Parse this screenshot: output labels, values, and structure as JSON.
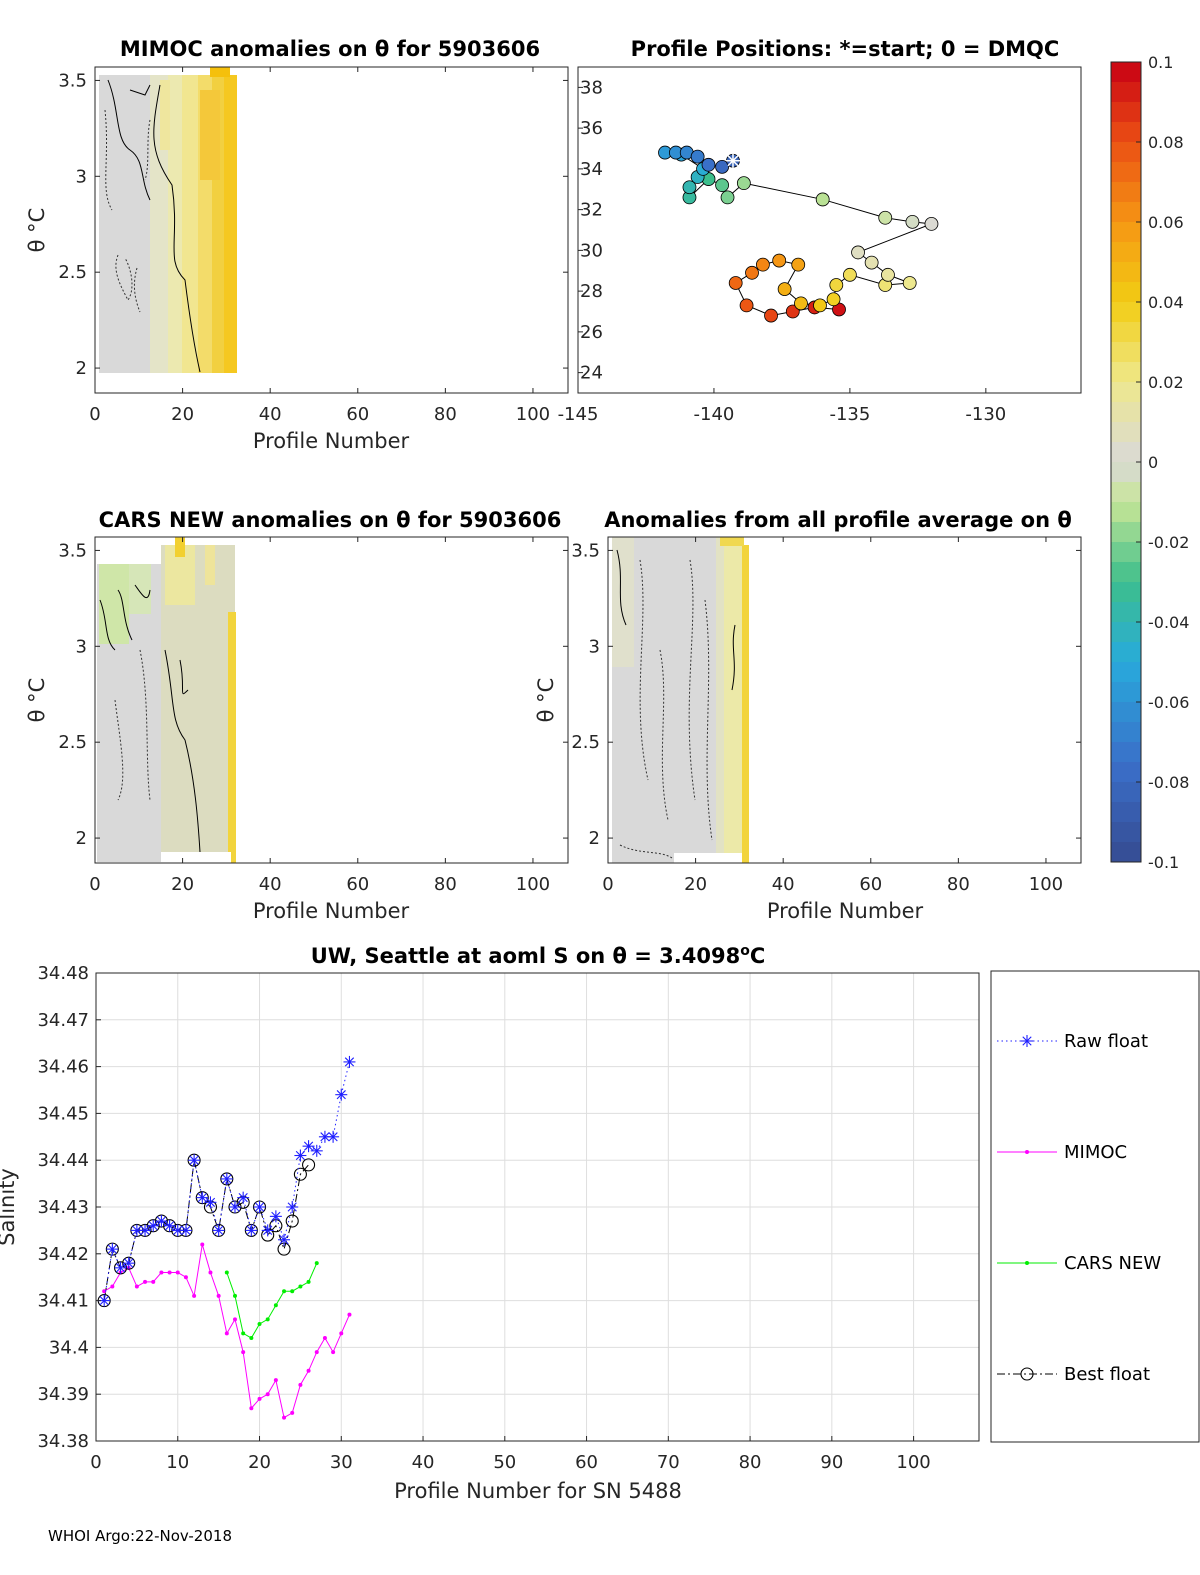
{
  "footer": "WHOI Argo:22-Nov-2018",
  "panels": {
    "mimoc": {
      "title": "MIMOC anomalies on θ  for 5903606",
      "xlabel": "Profile Number",
      "ylabel": "θ °C",
      "xticks": [
        "0",
        "20",
        "40",
        "60",
        "80",
        "100"
      ],
      "yticks": [
        "2",
        "2.5",
        "3",
        "3.5"
      ]
    },
    "positions": {
      "title": "Profile Positions: *=start; 0 = DMQC",
      "xticks": [
        "-145",
        "-140",
        "-135",
        "-130"
      ],
      "yticks": [
        "24",
        "26",
        "28",
        "30",
        "32",
        "34",
        "36",
        "38"
      ]
    },
    "cars": {
      "title": "CARS NEW anomalies on θ for 5903606",
      "xlabel": "Profile Number",
      "ylabel": "θ °C",
      "xticks": [
        "0",
        "20",
        "40",
        "60",
        "80",
        "100"
      ],
      "yticks": [
        "2",
        "2.5",
        "3",
        "3.5"
      ]
    },
    "allavg": {
      "title": "Anomalies from all profile average on θ",
      "xlabel": "Profile Number",
      "ylabel": "θ °C",
      "xticks": [
        "0",
        "20",
        "40",
        "60",
        "80",
        "100"
      ],
      "yticks": [
        "2",
        "2.5",
        "3",
        "3.5"
      ]
    }
  },
  "colorbar": {
    "ticks": [
      "0.1",
      "0.08",
      "0.06",
      "0.04",
      "0.02",
      "0",
      "-0.02",
      "-0.04",
      "-0.06",
      "-0.08",
      "-0.1"
    ]
  },
  "chart_data": [
    {
      "type": "heatmap",
      "id": "mimoc",
      "title": "MIMOC anomalies on θ  for 5903606",
      "xlabel": "Profile Number",
      "ylabel": "θ °C",
      "xlim": [
        0,
        108
      ],
      "ylim": [
        1.87,
        3.57
      ],
      "profiles_shown": [
        1,
        31
      ],
      "anomaly_range": [
        -0.005,
        0.05
      ],
      "colormap": "jet",
      "clim": [
        -0.1,
        0.1
      ]
    },
    {
      "type": "scatter",
      "id": "positions",
      "title": "Profile Positions: *=start; 0 = DMQC",
      "xlim": [
        -145,
        -126.5
      ],
      "ylim": [
        23,
        39
      ],
      "points": [
        {
          "lon": -139.3,
          "lat": 34.4,
          "start": true
        },
        {
          "lon": -139.7,
          "lat": 34.1
        },
        {
          "lon": -140.2,
          "lat": 34.2
        },
        {
          "lon": -140.6,
          "lat": 34.6
        },
        {
          "lon": -141.0,
          "lat": 34.8
        },
        {
          "lon": -141.4,
          "lat": 34.8
        },
        {
          "lon": -141.8,
          "lat": 34.8
        },
        {
          "lon": -141.2,
          "lat": 34.7
        },
        {
          "lon": -140.4,
          "lat": 34.0
        },
        {
          "lon": -140.6,
          "lat": 33.6
        },
        {
          "lon": -140.9,
          "lat": 33.1
        },
        {
          "lon": -140.9,
          "lat": 32.6
        },
        {
          "lon": -140.2,
          "lat": 33.5
        },
        {
          "lon": -139.7,
          "lat": 33.2
        },
        {
          "lon": -139.5,
          "lat": 32.6
        },
        {
          "lon": -138.9,
          "lat": 33.3
        },
        {
          "lon": -136.0,
          "lat": 32.5
        },
        {
          "lon": -133.7,
          "lat": 31.6
        },
        {
          "lon": -132.7,
          "lat": 31.4
        },
        {
          "lon": -132.0,
          "lat": 31.3
        },
        {
          "lon": -134.7,
          "lat": 29.9
        },
        {
          "lon": -134.2,
          "lat": 29.4
        },
        {
          "lon": -133.6,
          "lat": 28.8
        },
        {
          "lon": -132.8,
          "lat": 28.4
        },
        {
          "lon": -133.7,
          "lat": 28.3
        },
        {
          "lon": -135.0,
          "lat": 28.8
        },
        {
          "lon": -135.5,
          "lat": 28.3
        },
        {
          "lon": -135.6,
          "lat": 27.6
        },
        {
          "lon": -136.1,
          "lat": 27.3
        },
        {
          "lon": -136.8,
          "lat": 27.4
        },
        {
          "lon": -137.4,
          "lat": 28.1
        },
        {
          "lon": -136.9,
          "lat": 29.3
        },
        {
          "lon": -137.6,
          "lat": 29.5
        },
        {
          "lon": -138.2,
          "lat": 29.3
        },
        {
          "lon": -138.6,
          "lat": 28.9
        },
        {
          "lon": -139.2,
          "lat": 28.4
        },
        {
          "lon": -138.8,
          "lat": 27.3
        },
        {
          "lon": -137.9,
          "lat": 26.8
        },
        {
          "lon": -137.1,
          "lat": 27.0
        },
        {
          "lon": -136.3,
          "lat": 27.2
        },
        {
          "lon": -135.4,
          "lat": 27.1
        }
      ]
    },
    {
      "type": "heatmap",
      "id": "cars",
      "title": "CARS NEW anomalies on θ for 5903606",
      "xlabel": "Profile Number",
      "ylabel": "θ °C",
      "xlim": [
        0,
        108
      ],
      "ylim": [
        1.87,
        3.57
      ],
      "profiles_shown": [
        1,
        31
      ],
      "anomaly_range": [
        -0.02,
        0.04
      ],
      "colormap": "jet",
      "clim": [
        -0.1,
        0.1
      ]
    },
    {
      "type": "heatmap",
      "id": "allavg",
      "title": "Anomalies from all profile average on θ",
      "xlabel": "Profile Number",
      "ylabel": "θ °C",
      "xlim": [
        0,
        108
      ],
      "ylim": [
        1.87,
        3.57
      ],
      "profiles_shown": [
        1,
        32
      ],
      "anomaly_range": [
        -0.005,
        0.03
      ],
      "colormap": "jet",
      "clim": [
        -0.1,
        0.1
      ]
    },
    {
      "type": "line",
      "id": "salinity",
      "title": "UW, Seattle at aoml S on θ = 3.4098°C",
      "xlabel": "Profile Number for SN 5488",
      "ylabel": "Salinity",
      "xlim": [
        0,
        108
      ],
      "ylim": [
        34.38,
        34.48
      ],
      "xticks": [
        "0",
        "10",
        "20",
        "30",
        "40",
        "50",
        "60",
        "70",
        "80",
        "90",
        "100"
      ],
      "yticks": [
        "34.38",
        "34.39",
        "34.4",
        "34.41",
        "34.42",
        "34.43",
        "34.44",
        "34.45",
        "34.46",
        "34.47",
        "34.48"
      ],
      "grid": true,
      "series": [
        {
          "name": "Raw float",
          "color": "#1f1fff",
          "style": "dotted",
          "marker": "star",
          "x": [
            1,
            2,
            3,
            4,
            5,
            6,
            7,
            8,
            9,
            10,
            11,
            12,
            13,
            14,
            15,
            16,
            17,
            18,
            19,
            20,
            21,
            22,
            23,
            24,
            25,
            26,
            27,
            28,
            29,
            30,
            31
          ],
          "y": [
            34.41,
            34.421,
            34.417,
            34.418,
            34.425,
            34.425,
            34.426,
            34.427,
            34.426,
            34.425,
            34.425,
            34.44,
            34.432,
            34.431,
            34.425,
            34.436,
            34.43,
            34.432,
            34.425,
            34.43,
            34.425,
            34.428,
            34.423,
            34.43,
            34.441,
            34.443,
            34.442,
            34.445,
            34.445,
            34.454,
            34.461
          ]
        },
        {
          "name": "MIMOC",
          "color": "#ff00ff",
          "style": "solid",
          "marker": "dot",
          "x": [
            1,
            2,
            3,
            4,
            5,
            6,
            7,
            8,
            9,
            10,
            11,
            12,
            13,
            14,
            15,
            16,
            17,
            18,
            19,
            20,
            21,
            22,
            23,
            24,
            25,
            26,
            27,
            28,
            29,
            30,
            31
          ],
          "y": [
            34.412,
            34.413,
            34.416,
            34.417,
            34.413,
            34.414,
            34.414,
            34.416,
            34.416,
            34.416,
            34.415,
            34.411,
            34.422,
            34.416,
            34.411,
            34.403,
            34.406,
            34.399,
            34.387,
            34.389,
            34.39,
            34.393,
            34.385,
            34.386,
            34.392,
            34.395,
            34.399,
            34.402,
            34.399,
            34.403,
            34.407
          ]
        },
        {
          "name": "CARS NEW",
          "color": "#00ee00",
          "style": "solid",
          "marker": "dot",
          "x": [
            16,
            17,
            18,
            19,
            20,
            21,
            22,
            23,
            24,
            25,
            26,
            27
          ],
          "y": [
            34.416,
            34.411,
            34.403,
            34.402,
            34.405,
            34.406,
            34.409,
            34.412,
            34.412,
            34.413,
            34.414,
            34.418
          ]
        },
        {
          "name": "Best float",
          "color": "#000000",
          "style": "dashdot",
          "marker": "circle",
          "x": [
            1,
            2,
            3,
            4,
            5,
            6,
            7,
            8,
            9,
            10,
            11,
            12,
            13,
            14,
            15,
            16,
            17,
            18,
            19,
            20,
            21,
            22,
            23,
            24,
            25,
            26
          ],
          "y": [
            34.41,
            34.421,
            34.417,
            34.418,
            34.425,
            34.425,
            34.426,
            34.427,
            34.426,
            34.425,
            34.425,
            34.44,
            34.432,
            34.43,
            34.425,
            34.436,
            34.43,
            34.431,
            34.425,
            34.43,
            34.424,
            34.426,
            34.421,
            34.427,
            34.437,
            34.439
          ]
        }
      ]
    }
  ]
}
